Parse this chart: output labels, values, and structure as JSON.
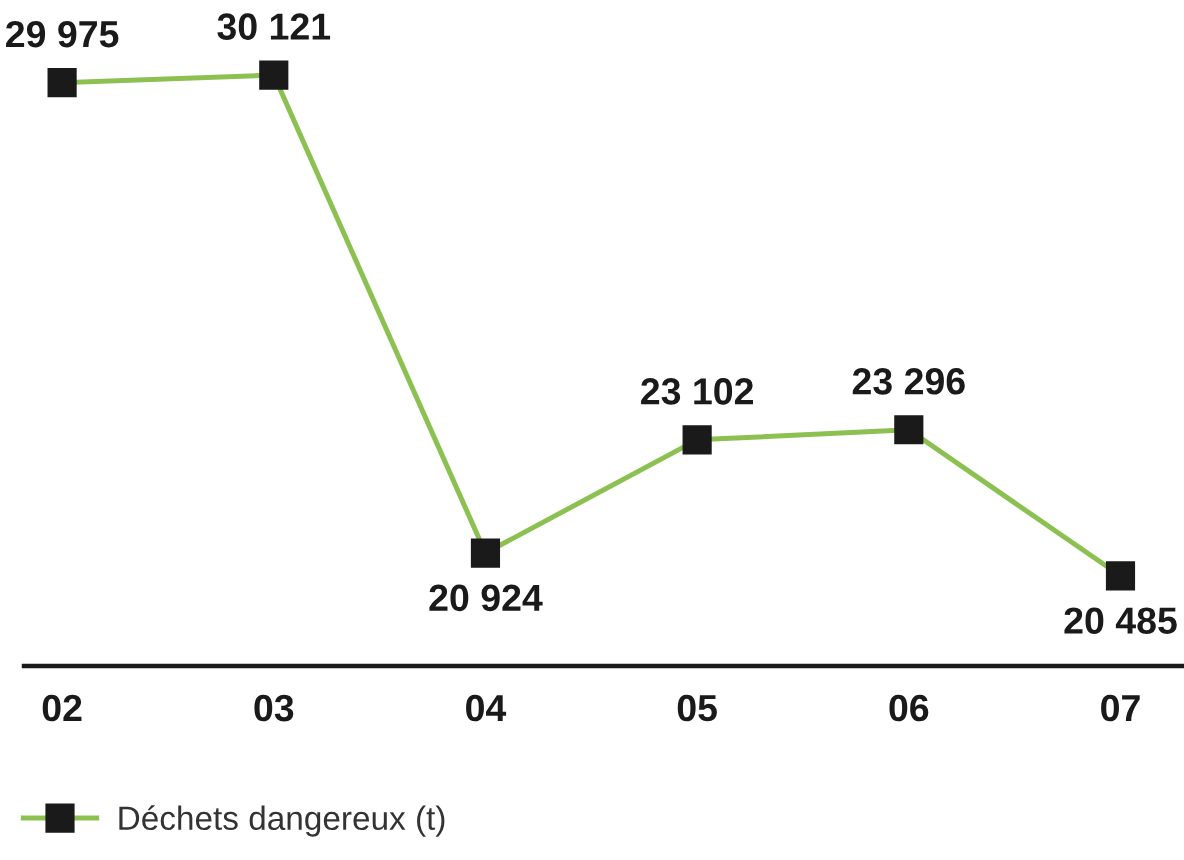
{
  "chart_data": {
    "type": "line",
    "categories": [
      "02",
      "03",
      "04",
      "05",
      "06",
      "07"
    ],
    "series": [
      {
        "name": "Déchets dangereux (t)",
        "color": "#8cc152",
        "values": [
          29975,
          30121,
          20924,
          23102,
          23296,
          20485
        ],
        "value_labels": [
          "29 975",
          "30 121",
          "20 924",
          "23 102",
          "23 296",
          "20 485"
        ]
      }
    ],
    "marker": "square",
    "line_style": "solid",
    "grid": false,
    "legend": "bottom left"
  }
}
